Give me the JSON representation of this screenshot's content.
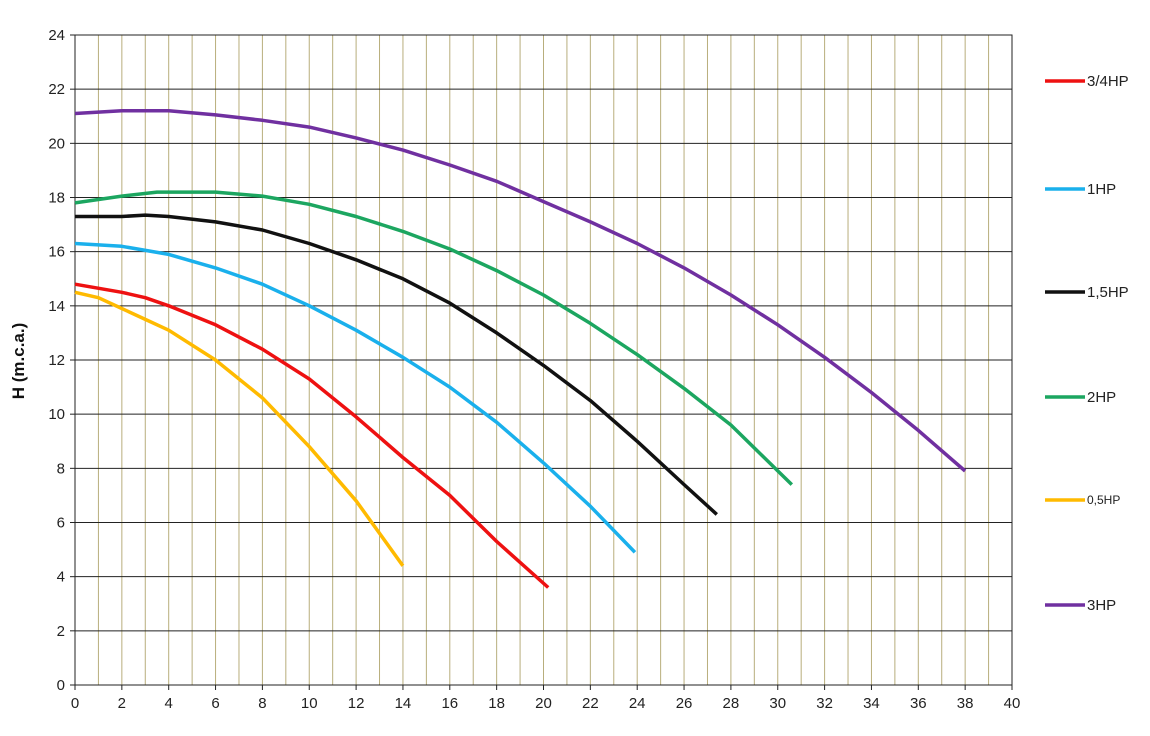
{
  "chart_data": {
    "type": "line",
    "title": "",
    "xlabel": "",
    "ylabel": "H (m.c.a.)",
    "xlim": [
      0,
      40
    ],
    "ylim": [
      0,
      24
    ],
    "xticks": [
      0,
      2,
      4,
      6,
      8,
      10,
      12,
      14,
      16,
      18,
      20,
      22,
      24,
      26,
      28,
      30,
      32,
      34,
      36,
      38,
      40
    ],
    "yticks": [
      0,
      2,
      4,
      6,
      8,
      10,
      12,
      14,
      16,
      18,
      20,
      22,
      24
    ],
    "grid": true,
    "legend_position": "right",
    "series": [
      {
        "name": "3/4HP",
        "color": "#ee1111",
        "points": [
          [
            0,
            14.8
          ],
          [
            2,
            14.5
          ],
          [
            3,
            14.3
          ],
          [
            4,
            14.0
          ],
          [
            6,
            13.3
          ],
          [
            8,
            12.4
          ],
          [
            10,
            11.3
          ],
          [
            12,
            9.9
          ],
          [
            14,
            8.4
          ],
          [
            16,
            7.0
          ],
          [
            18,
            5.3
          ],
          [
            20.2,
            3.6
          ]
        ]
      },
      {
        "name": "1HP",
        "color": "#1ab0ec",
        "points": [
          [
            0,
            16.3
          ],
          [
            2,
            16.2
          ],
          [
            4,
            15.9
          ],
          [
            6,
            15.4
          ],
          [
            8,
            14.8
          ],
          [
            10,
            14.0
          ],
          [
            12,
            13.1
          ],
          [
            14,
            12.1
          ],
          [
            16,
            11.0
          ],
          [
            18,
            9.7
          ],
          [
            20,
            8.2
          ],
          [
            22,
            6.6
          ],
          [
            23.9,
            4.9
          ]
        ]
      },
      {
        "name": "1,5HP",
        "color": "#111111",
        "points": [
          [
            0,
            17.3
          ],
          [
            2,
            17.3
          ],
          [
            3,
            17.35
          ],
          [
            4,
            17.3
          ],
          [
            6,
            17.1
          ],
          [
            8,
            16.8
          ],
          [
            10,
            16.3
          ],
          [
            12,
            15.7
          ],
          [
            14,
            15.0
          ],
          [
            16,
            14.1
          ],
          [
            18,
            13.0
          ],
          [
            20,
            11.8
          ],
          [
            22,
            10.5
          ],
          [
            24,
            9.0
          ],
          [
            26,
            7.4
          ],
          [
            27.4,
            6.3
          ]
        ]
      },
      {
        "name": "2HP",
        "color": "#1ca660",
        "points": [
          [
            0,
            17.8
          ],
          [
            2,
            18.05
          ],
          [
            3.5,
            18.2
          ],
          [
            6,
            18.2
          ],
          [
            8,
            18.05
          ],
          [
            10,
            17.75
          ],
          [
            12,
            17.3
          ],
          [
            14,
            16.75
          ],
          [
            16,
            16.1
          ],
          [
            18,
            15.3
          ],
          [
            20,
            14.4
          ],
          [
            22,
            13.35
          ],
          [
            24,
            12.2
          ],
          [
            26,
            10.95
          ],
          [
            28,
            9.6
          ],
          [
            30.6,
            7.4
          ]
        ]
      },
      {
        "name": "0,5HP",
        "color": "#ffba00",
        "points": [
          [
            0,
            14.5
          ],
          [
            1,
            14.3
          ],
          [
            2,
            13.9
          ],
          [
            3,
            13.5
          ],
          [
            4,
            13.1
          ],
          [
            6,
            12.0
          ],
          [
            8,
            10.6
          ],
          [
            10,
            8.8
          ],
          [
            12,
            6.8
          ],
          [
            14,
            4.4
          ]
        ]
      },
      {
        "name": "3HP",
        "color": "#7030a0",
        "points": [
          [
            0,
            21.1
          ],
          [
            2,
            21.2
          ],
          [
            4,
            21.2
          ],
          [
            6,
            21.05
          ],
          [
            8,
            20.85
          ],
          [
            10,
            20.6
          ],
          [
            12,
            20.2
          ],
          [
            14,
            19.75
          ],
          [
            16,
            19.2
          ],
          [
            18,
            18.6
          ],
          [
            20,
            17.85
          ],
          [
            22,
            17.1
          ],
          [
            24,
            16.3
          ],
          [
            26,
            15.4
          ],
          [
            28,
            14.4
          ],
          [
            30,
            13.3
          ],
          [
            32,
            12.1
          ],
          [
            34,
            10.8
          ],
          [
            36,
            9.4
          ],
          [
            38,
            7.9
          ]
        ]
      }
    ]
  }
}
